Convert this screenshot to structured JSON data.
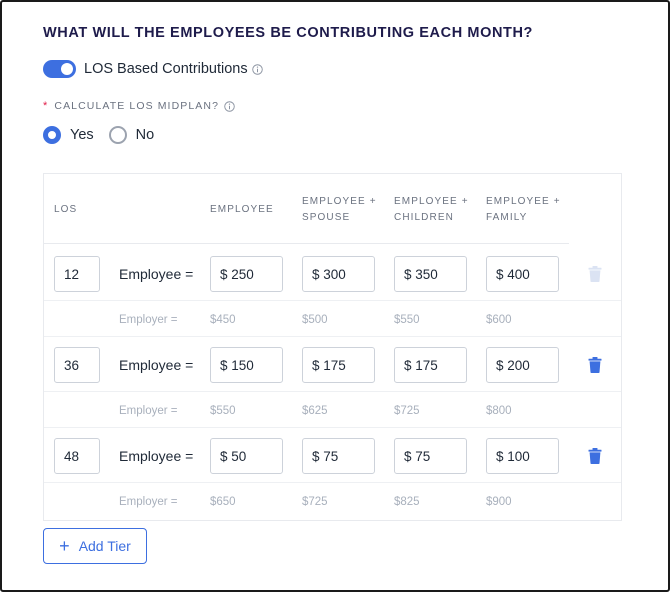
{
  "heading": "WHAT WILL THE EMPLOYEES BE CONTRIBUTING EACH MONTH?",
  "toggle": {
    "label": "LOS Based Contributions",
    "on": true
  },
  "midplan": {
    "required_mark": "*",
    "label": "CALCULATE LOS MIDPLAN?"
  },
  "radio": {
    "yes": "Yes",
    "no": "No",
    "selected": "Yes"
  },
  "table": {
    "headers": {
      "los": "LOS",
      "employee": "EMPLOYEE",
      "spouse_1": "EMPLOYEE +",
      "spouse_2": "SPOUSE",
      "children_1": "EMPLOYEE +",
      "children_2": "CHILDREN",
      "family_1": "EMPLOYEE +",
      "family_2": "FAMILY"
    },
    "employee_label": "Employee =",
    "employer_label": "Employer =",
    "tiers": [
      {
        "los": "12",
        "employee": [
          "$ 250",
          "$ 300",
          "$ 350",
          "$ 400"
        ],
        "employer": [
          "$450",
          "$500",
          "$550",
          "$600"
        ],
        "delete_disabled": true
      },
      {
        "los": "36",
        "employee": [
          "$ 150",
          "$ 175",
          "$ 175",
          "$ 200"
        ],
        "employer": [
          "$550",
          "$625",
          "$725",
          "$800"
        ],
        "delete_disabled": false
      },
      {
        "los": "48",
        "employee": [
          "$ 50",
          "$ 75",
          "$ 75",
          "$ 100"
        ],
        "employer": [
          "$650",
          "$725",
          "$825",
          "$900"
        ],
        "delete_disabled": false
      }
    ]
  },
  "add_tier": {
    "label": "Add Tier"
  },
  "colors": {
    "accent": "#3d6fe0",
    "trash_disabled": "#dbe3f3",
    "muted": "#a8b0bc"
  },
  "icons": {
    "info": "info-circle-icon",
    "trash": "trash-icon",
    "plus": "plus-icon"
  }
}
